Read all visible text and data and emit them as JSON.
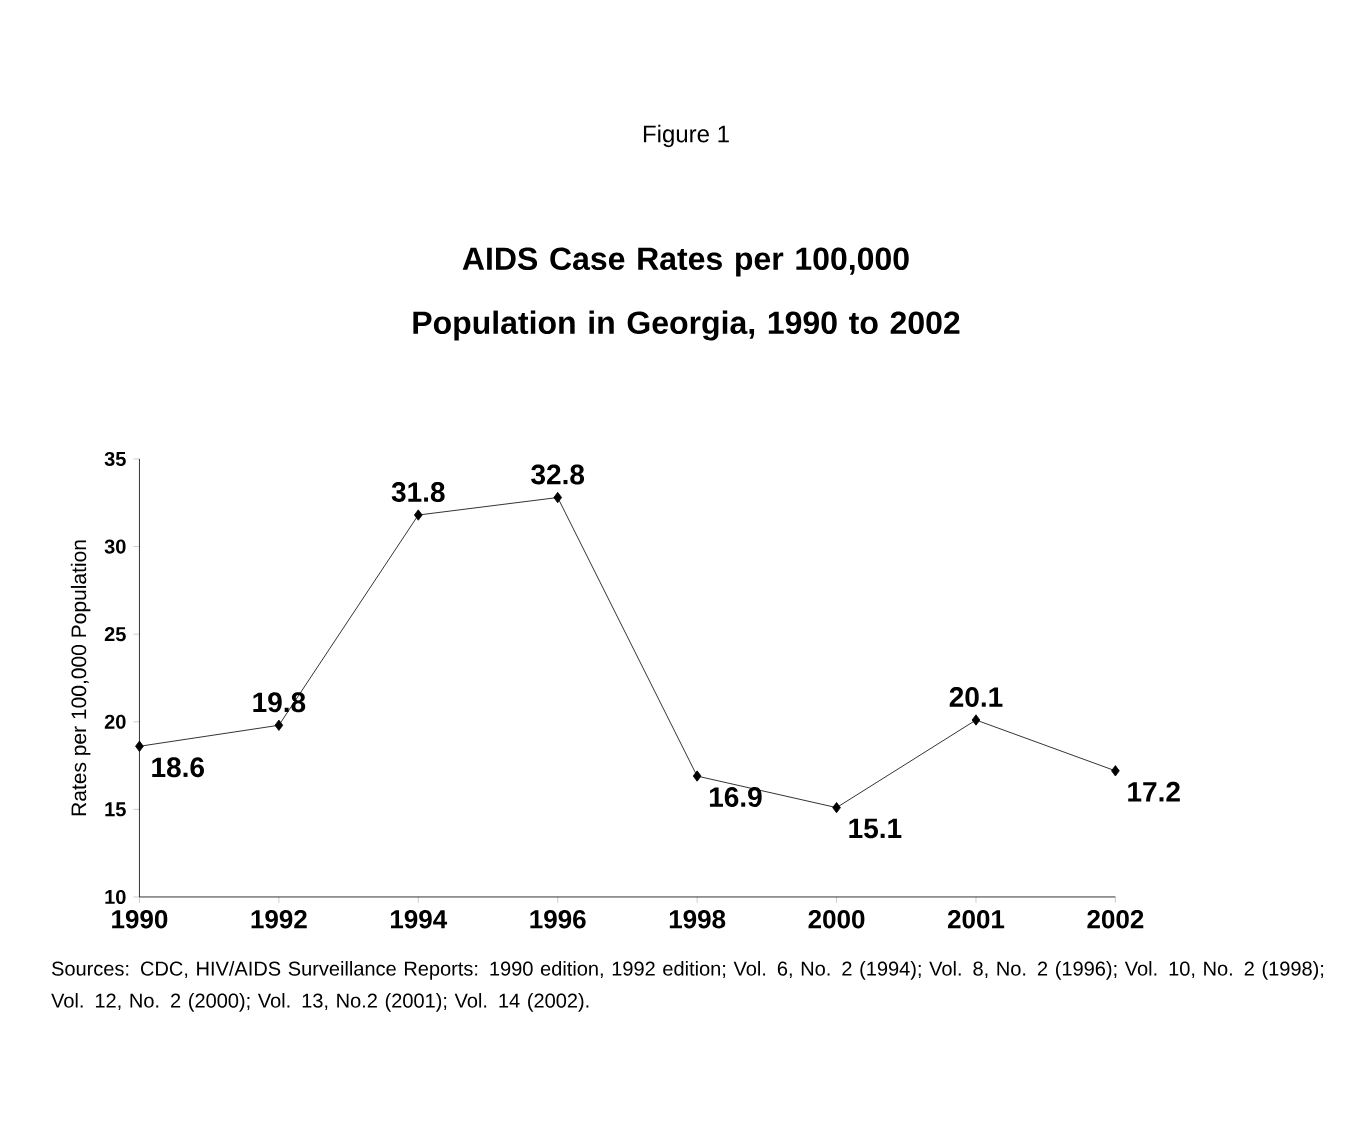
{
  "chart_data": {
    "type": "line",
    "subtitle": "Figure 1",
    "title": "AIDS Case Rates per 100,000 Population in Georgia, 1990 to 2002",
    "ylabel": "Rates per 100,000 Population",
    "categories": [
      "1990",
      "1992",
      "1994",
      "1996",
      "1998",
      "2000",
      "2001",
      "2002"
    ],
    "series": [
      {
        "color": "#000000",
        "values": [
          18.6,
          19.8,
          31.8,
          32.8,
          16.9,
          15.1,
          20.1,
          17.2
        ]
      }
    ],
    "ylim": [
      10,
      35
    ],
    "yticks": [
      10,
      15,
      20,
      25,
      30,
      35
    ],
    "data_labels": true,
    "marker": "diamond",
    "line_style": "solid",
    "grid": false,
    "annotations": [
      "Sources: CDC, HIV/AIDS Surveillance Reports:  1990 edition, 1992 edition; Vol. 6, No. 2 (1994); Vol. 8, No. 2 (1996); Vol. 10, No. 2 (1998); Vol. 12, No. 2 (2000); Vol. 13, No.2 (2001); Vol. 14 (2002)."
    ]
  }
}
